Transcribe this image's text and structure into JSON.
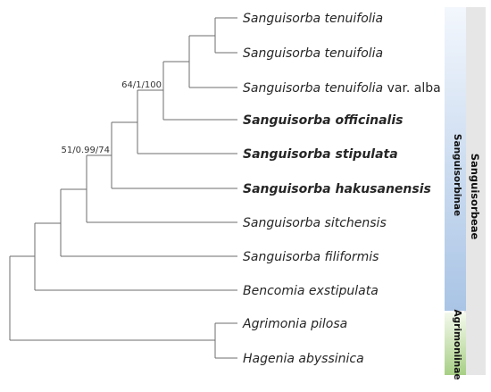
{
  "taxa": [
    {
      "genus": "Sanguisorba",
      "epithet": "tenuifolia",
      "suffix": "",
      "bold": false
    },
    {
      "genus": "Sanguisorba",
      "epithet": "tenuifolia",
      "suffix": "",
      "bold": false
    },
    {
      "genus": "Sanguisorba",
      "epithet": "tenuifolia",
      "suffix": " var. alba",
      "bold": false
    },
    {
      "genus": "Sanguisorba",
      "epithet": "officinalis",
      "suffix": "",
      "bold": true
    },
    {
      "genus": "Sanguisorba",
      "epithet": "stipulata",
      "suffix": "",
      "bold": true
    },
    {
      "genus": "Sanguisorba",
      "epithet": "hakusanensis",
      "suffix": "",
      "bold": true
    },
    {
      "genus": "Sanguisorba",
      "epithet": "sitchensis",
      "suffix": "",
      "bold": false
    },
    {
      "genus": "Sanguisorba",
      "epithet": "filiformis",
      "suffix": "",
      "bold": false
    },
    {
      "genus": "Bencomia",
      "epithet": "exstipulata",
      "suffix": "",
      "bold": false
    },
    {
      "genus": "Agrimonia",
      "epithet": "pilosa",
      "suffix": "",
      "bold": false
    },
    {
      "genus": "Hagenia",
      "epithet": "abyssinica",
      "suffix": "",
      "bold": false
    }
  ],
  "support_labels": {
    "inner": "64/1/100",
    "outer": "51/0.99/74"
  },
  "subtribes": {
    "sanguisorbinae": "Sanguisorbinae",
    "agrimoniinae": "Agrimoniinae"
  },
  "tribe": "Sanguisorbeae",
  "colors": {
    "branch": "#6e6e6e",
    "sanguisorbinae_top": "#f3f7fd",
    "sanguisorbinae_bottom": "#a9c4e5",
    "agrimoniinae_top": "#f4f9ec",
    "agrimoniinae_bottom": "#a7cf86",
    "tribe_band": "#e6e6e6"
  }
}
